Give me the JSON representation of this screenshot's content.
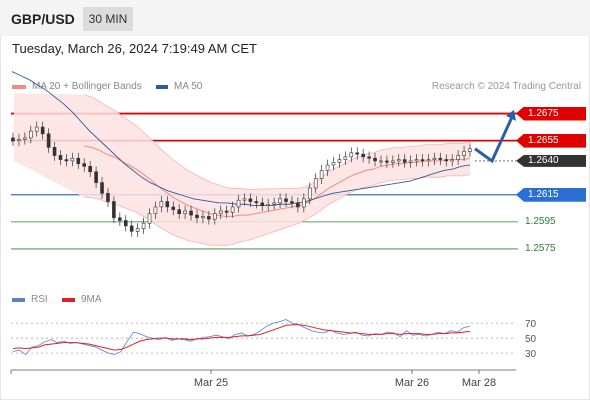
{
  "header": {
    "pair": "GBP/USD",
    "timeframe": "30 MIN"
  },
  "timestamp": "Tuesday, March 26, 2024 7:19:49 AM CET",
  "legend_main": [
    {
      "label": "MA 20 + Bollinger Bands",
      "color": "#f28b82"
    },
    {
      "label": "MA 50",
      "color": "#2e5c9a"
    }
  ],
  "credit": "Research © 2024 Trading Central",
  "legend_rsi": [
    {
      "label": "RSI",
      "color": "#5b7fd4"
    },
    {
      "label": "9MA",
      "color": "#e02020"
    }
  ],
  "chart_data": [
    {
      "type": "candlestick",
      "y_range": [
        1.2555,
        1.2685
      ],
      "current_price": "1.2640",
      "levels": [
        {
          "label": "1.2675",
          "value": 1.2675,
          "kind": "resistance",
          "color": "#e00000"
        },
        {
          "label": "1.2655",
          "value": 1.2655,
          "kind": "resistance",
          "color": "#e00000"
        },
        {
          "label": "1.2615",
          "value": 1.2615,
          "kind": "pivot",
          "color": "#2b6fd6"
        },
        {
          "label": "1.2595",
          "value": 1.2595,
          "kind": "support",
          "color": "#2e7d32"
        },
        {
          "label": "1.2575",
          "value": 1.2575,
          "kind": "support",
          "color": "#2e7d32"
        }
      ],
      "forecast_path": [
        1.2649,
        1.264,
        1.2674
      ],
      "closes": [
        1.2655,
        1.2656,
        1.2657,
        1.2662,
        1.2665,
        1.266,
        1.265,
        1.2644,
        1.2641,
        1.264,
        1.2642,
        1.2638,
        1.2636,
        1.2632,
        1.2624,
        1.2616,
        1.261,
        1.2598,
        1.2596,
        1.2592,
        1.2588,
        1.259,
        1.2594,
        1.2601,
        1.2606,
        1.261,
        1.2606,
        1.2604,
        1.2601,
        1.2603,
        1.26,
        1.2598,
        1.2599,
        1.2597,
        1.2601,
        1.2603,
        1.2602,
        1.2606,
        1.2611,
        1.2612,
        1.261,
        1.2609,
        1.2607,
        1.2608,
        1.2609,
        1.2612,
        1.261,
        1.2609,
        1.2606,
        1.2612,
        1.262,
        1.2627,
        1.2633,
        1.2637,
        1.2639,
        1.2641,
        1.2643,
        1.2646,
        1.2645,
        1.2643,
        1.2642,
        1.264,
        1.264,
        1.2639,
        1.264,
        1.2641,
        1.2639,
        1.264,
        1.2641,
        1.264,
        1.2641,
        1.2642,
        1.2641,
        1.264,
        1.2641,
        1.2644,
        1.2647,
        1.2649
      ],
      "ma20": [
        1.2651,
        1.265,
        1.2648,
        1.2645,
        1.2643,
        1.264,
        1.2637,
        1.2634,
        1.263,
        1.2626,
        1.2621,
        1.2617,
        1.2613,
        1.261,
        1.2607,
        1.2605,
        1.2603,
        1.2601,
        1.26,
        1.2599,
        1.2599,
        1.26,
        1.26,
        1.2601,
        1.2602,
        1.2603,
        1.2604,
        1.2605,
        1.2606,
        1.2607,
        1.2609,
        1.2612,
        1.2616,
        1.262,
        1.2623,
        1.2626,
        1.2629,
        1.2631,
        1.2633,
        1.2634,
        1.2636,
        1.2637,
        1.2638,
        1.2638,
        1.2639,
        1.2639,
        1.264,
        1.264,
        1.264,
        1.2641,
        1.2641,
        1.2641,
        1.2642
      ],
      "ma50": [
        1.2706,
        1.2703,
        1.27,
        1.2696,
        1.2692,
        1.2687,
        1.2682,
        1.2676,
        1.2669,
        1.2662,
        1.2656,
        1.265,
        1.2644,
        1.2638,
        1.2633,
        1.2628,
        1.2624,
        1.2621,
        1.2618,
        1.2616,
        1.2614,
        1.2612,
        1.2611,
        1.261,
        1.2609,
        1.2609,
        1.2608,
        1.2608,
        1.2607,
        1.2607,
        1.2607,
        1.2608,
        1.2608,
        1.2609,
        1.261,
        1.2612,
        1.2614,
        1.2616,
        1.2617,
        1.2618,
        1.2619,
        1.262,
        1.2621,
        1.2622,
        1.2623,
        1.2624,
        1.2625,
        1.2627,
        1.2629,
        1.2631,
        1.2633,
        1.2634,
        1.2636,
        1.2637
      ]
    },
    {
      "type": "line",
      "name": "RSI",
      "y_ticks": [
        "70",
        "50",
        "30"
      ],
      "y_range": [
        10,
        85
      ],
      "rsi": [
        32,
        34,
        28,
        38,
        40,
        45,
        48,
        44,
        46,
        43,
        44,
        42,
        40,
        38,
        34,
        30,
        28,
        32,
        46,
        58,
        56,
        52,
        50,
        48,
        51,
        47,
        49,
        48,
        46,
        49,
        51,
        52,
        54,
        52,
        49,
        55,
        57,
        53,
        55,
        60,
        66,
        70,
        72,
        75,
        70,
        68,
        64,
        60,
        58,
        57,
        61,
        57,
        55,
        56,
        58,
        54,
        53,
        56,
        55,
        58,
        57,
        52,
        60,
        54,
        55,
        53,
        55,
        58,
        56,
        60,
        58,
        64,
        66
      ],
      "ma9": [
        36,
        37,
        36,
        37,
        38,
        41,
        42,
        43,
        44,
        44,
        44,
        43,
        42,
        40,
        38,
        36,
        34,
        35,
        38,
        42,
        46,
        48,
        49,
        50,
        50,
        49,
        49,
        49,
        48,
        49,
        49,
        50,
        51,
        51,
        51,
        52,
        53,
        53,
        54,
        55,
        58,
        61,
        64,
        67,
        68,
        68,
        67,
        65,
        63,
        61,
        60,
        59,
        58,
        57,
        57,
        56,
        55,
        55,
        55,
        56,
        56,
        55,
        56,
        56,
        56,
        55,
        55,
        56,
        56,
        57,
        57,
        58,
        59
      ]
    }
  ],
  "x_labels": [
    "Mar 25",
    "Mar 26",
    "Mar 28"
  ]
}
